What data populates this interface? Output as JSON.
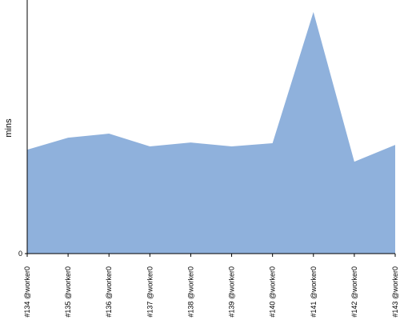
{
  "chart_data": {
    "type": "area",
    "y_label": "mins",
    "categories": [
      "#134 @worker0",
      "#135 @worker0",
      "#136 @worker0",
      "#137 @worker0",
      "#138 @worker0",
      "#139 @worker0",
      "#140 @worker0",
      "#141 @worker0",
      "#142 @worker0",
      "#143 @worker0"
    ],
    "values": [
      4.33,
      4.83,
      5.0,
      4.47,
      4.63,
      4.47,
      4.6,
      10.07,
      3.83,
      4.53
    ],
    "color": "#8fb1dc",
    "ylim": [
      0,
      10.57
    ],
    "yticks": [
      0
    ]
  }
}
